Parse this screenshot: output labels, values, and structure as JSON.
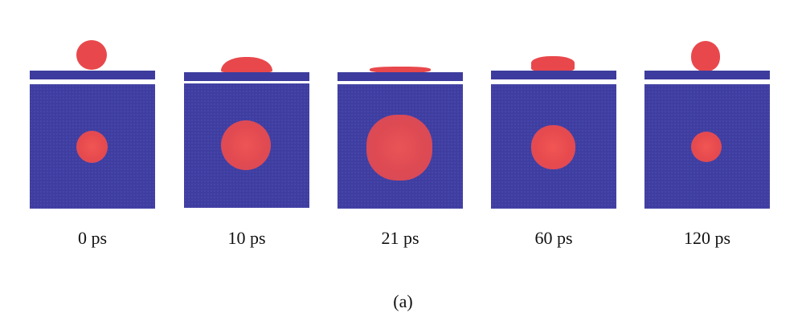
{
  "figure": {
    "caption": "(a)",
    "colors": {
      "droplet": "#e8484c",
      "substrate": "#3d3c9e",
      "background": "#ffffff"
    },
    "panels": [
      {
        "time_label": "0 ps"
      },
      {
        "time_label": "10 ps"
      },
      {
        "time_label": "21 ps"
      },
      {
        "time_label": "60 ps"
      },
      {
        "time_label": "120 ps"
      }
    ]
  }
}
